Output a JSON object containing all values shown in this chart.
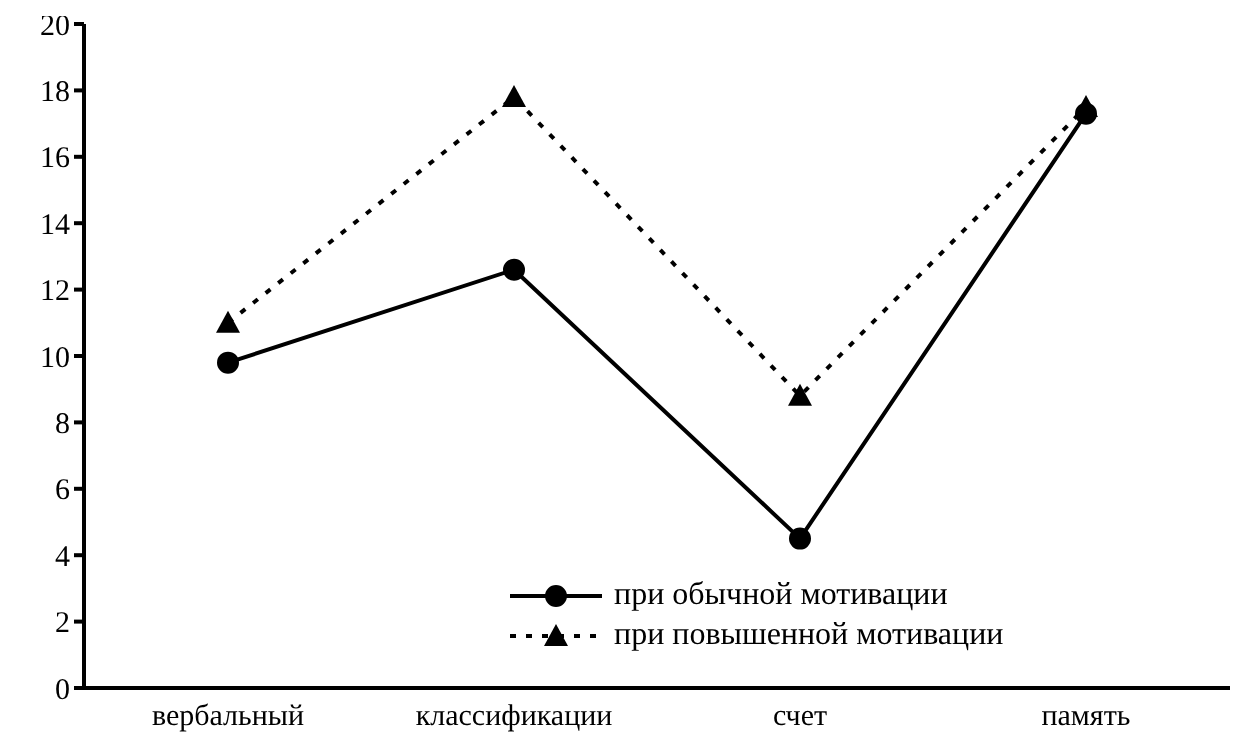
{
  "chart_data": {
    "type": "line",
    "categories": [
      "вербальный",
      "классификации",
      "счет",
      "память"
    ],
    "series": [
      {
        "name": "при обычной мотивации",
        "color": "#000000",
        "values": [
          9.8,
          12.6,
          4.5,
          17.3
        ],
        "marker": "circle",
        "line_style": "solid"
      },
      {
        "name": "при повышенной мотивации",
        "color": "#000000",
        "values": [
          11.0,
          17.8,
          8.8,
          17.5
        ],
        "marker": "triangle",
        "line_style": "dotted"
      }
    ],
    "ylim": [
      0,
      20
    ],
    "yticks": [
      0,
      2,
      4,
      6,
      8,
      10,
      12,
      14,
      16,
      18,
      20
    ],
    "grid": false,
    "legend": "bottom right"
  }
}
